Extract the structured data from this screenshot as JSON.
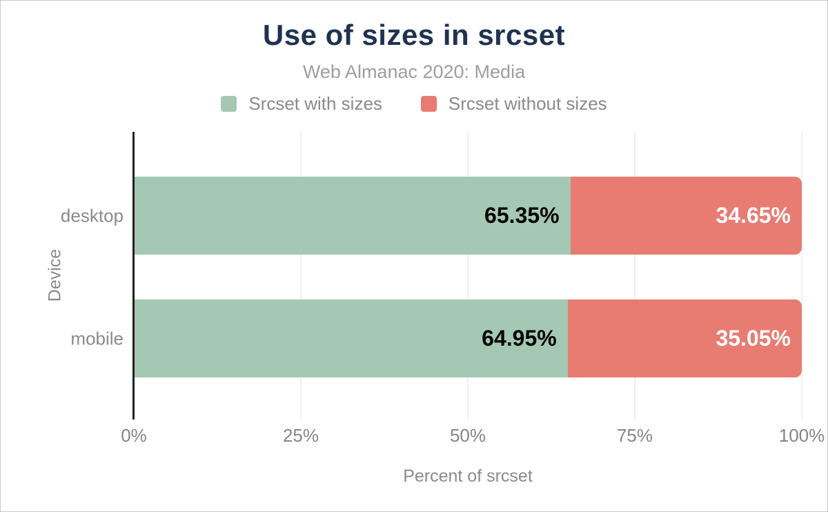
{
  "chart_data": {
    "type": "bar",
    "orientation": "horizontal",
    "stacked": true,
    "title": "Use of sizes in srcset",
    "subtitle": "Web Almanac 2020: Media",
    "xlabel": "Percent of srcset",
    "ylabel": "Device",
    "categories": [
      "desktop",
      "mobile"
    ],
    "series": [
      {
        "name": "Srcset with sizes",
        "color": "#a5c8b5",
        "label_color": "#000000",
        "values": [
          65.35,
          64.95
        ]
      },
      {
        "name": "Srcset without sizes",
        "color": "#e87c72",
        "label_color": "#ffffff",
        "values": [
          34.65,
          35.05
        ]
      }
    ],
    "value_labels": [
      [
        "65.35%",
        "34.65%"
      ],
      [
        "64.95%",
        "35.05%"
      ]
    ],
    "x_ticks": [
      "0%",
      "25%",
      "50%",
      "75%",
      "100%"
    ],
    "xlim": [
      0,
      100
    ],
    "legend_position": "top",
    "grid": true,
    "colors": {
      "title": "#1f3251",
      "subtitle": "#9e9e9e",
      "axis_line": "#212121",
      "gridline": "#f0f0f0",
      "tick_text": "#858585",
      "label_text": "#8a8a8a"
    }
  }
}
